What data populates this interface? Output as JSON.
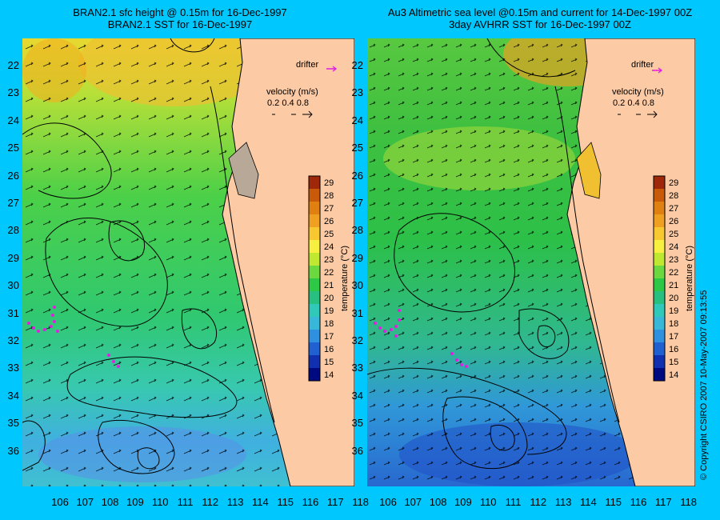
{
  "left_panel": {
    "title_line1": "BRAN2.1 sfc height @ 0.15m for 16-Dec-1997",
    "title_line2": "BRAN2.1 SST for 16-Dec-1997"
  },
  "right_panel": {
    "title_line1": "Au3 Altimetric sea level  @0.15m and current for 14-Dec-1997 00Z",
    "title_line2": "3day AVHRR SST for 16-Dec-1997 00Z"
  },
  "legend": {
    "drifter_label": "drifter",
    "velocity_label": "velocity (m/s)",
    "velocity_scale": "0.2 0.4 0.8"
  },
  "colorbar": {
    "label": "temperature (°C)",
    "ticks": [
      "29",
      "28",
      "27",
      "26",
      "25",
      "24",
      "23",
      "22",
      "21",
      "20",
      "19",
      "18",
      "17",
      "16",
      "15",
      "14"
    ],
    "colors": [
      "#a0280a",
      "#c85a0a",
      "#e08010",
      "#f0a020",
      "#f8c830",
      "#f8f040",
      "#c0e830",
      "#6cd840",
      "#2cc846",
      "#28c080",
      "#30c8b8",
      "#38b8d8",
      "#3090e0",
      "#2060d0",
      "#1030b0",
      "#000a80"
    ]
  },
  "axes": {
    "y_ticks": [
      "22",
      "23",
      "24",
      "25",
      "26",
      "27",
      "28",
      "29",
      "30",
      "31",
      "32",
      "33",
      "34",
      "35",
      "36"
    ],
    "x_ticks": [
      "106",
      "107",
      "108",
      "109",
      "110",
      "111",
      "112",
      "113",
      "114",
      "115",
      "116",
      "117",
      "118"
    ]
  },
  "copyright": "© Copyright CSIRO 2007   10-May-2007 09:13:55"
}
